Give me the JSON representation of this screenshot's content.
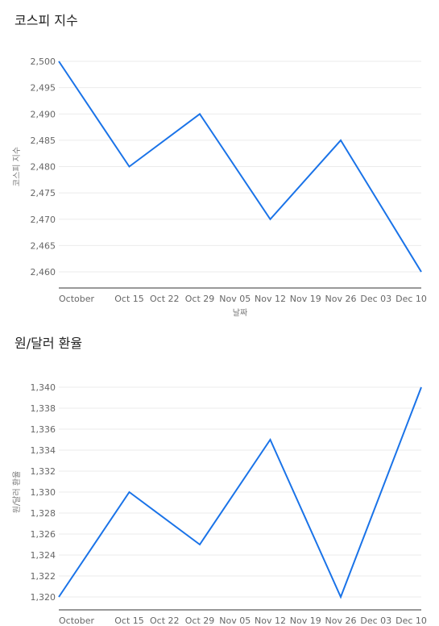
{
  "colors": {
    "line": "#1a73e8",
    "grid": "#ebebeb",
    "axis": "#333333",
    "tick_text": "#666666"
  },
  "charts": [
    {
      "title": "코스피 지수",
      "chart_data": {
        "type": "line",
        "title": "코스피 지수",
        "xlabel": "날짜",
        "ylabel": "코스피 지수",
        "x": [
          "2024-10-01",
          "2024-10-15",
          "2024-10-29",
          "2024-11-12",
          "2024-11-26",
          "2024-12-12"
        ],
        "values": [
          2500,
          2480,
          2490,
          2470,
          2485,
          2460
        ],
        "x_ticks": [
          {
            "label": "October",
            "date": "2024-10-01"
          },
          {
            "label": "Oct 15",
            "date": "2024-10-15"
          },
          {
            "label": "Oct 22",
            "date": "2024-10-22"
          },
          {
            "label": "Oct 29",
            "date": "2024-10-29"
          },
          {
            "label": "Nov 05",
            "date": "2024-11-05"
          },
          {
            "label": "Nov 12",
            "date": "2024-11-12"
          },
          {
            "label": "Nov 19",
            "date": "2024-11-19"
          },
          {
            "label": "Nov 26",
            "date": "2024-11-26"
          },
          {
            "label": "Dec 03",
            "date": "2024-12-03"
          },
          {
            "label": "Dec 10",
            "date": "2024-12-10"
          }
        ],
        "y_ticks": [
          "2,460",
          "2,465",
          "2,470",
          "2,475",
          "2,480",
          "2,485",
          "2,490",
          "2,495",
          "2,500"
        ],
        "ylim": [
          2460,
          2500
        ],
        "grid": true
      }
    },
    {
      "title": "원/달러 환율",
      "chart_data": {
        "type": "line",
        "title": "원/달러 환율",
        "xlabel": "",
        "ylabel": "원/달러 환율",
        "x": [
          "2024-10-01",
          "2024-10-15",
          "2024-10-29",
          "2024-11-12",
          "2024-11-26",
          "2024-12-12"
        ],
        "values": [
          1320,
          1330,
          1325,
          1335,
          1320,
          1340
        ],
        "x_ticks": [
          {
            "label": "October",
            "date": "2024-10-01"
          },
          {
            "label": "Oct 15",
            "date": "2024-10-15"
          },
          {
            "label": "Oct 22",
            "date": "2024-10-22"
          },
          {
            "label": "Oct 29",
            "date": "2024-10-29"
          },
          {
            "label": "Nov 05",
            "date": "2024-11-05"
          },
          {
            "label": "Nov 12",
            "date": "2024-11-12"
          },
          {
            "label": "Nov 19",
            "date": "2024-11-19"
          },
          {
            "label": "Nov 26",
            "date": "2024-11-26"
          },
          {
            "label": "Dec 03",
            "date": "2024-12-03"
          },
          {
            "label": "Dec 10",
            "date": "2024-12-10"
          }
        ],
        "y_ticks": [
          "1,320",
          "1,322",
          "1,324",
          "1,326",
          "1,328",
          "1,330",
          "1,332",
          "1,334",
          "1,336",
          "1,338",
          "1,340"
        ],
        "ylim": [
          1320,
          1340
        ],
        "grid": true
      }
    }
  ]
}
